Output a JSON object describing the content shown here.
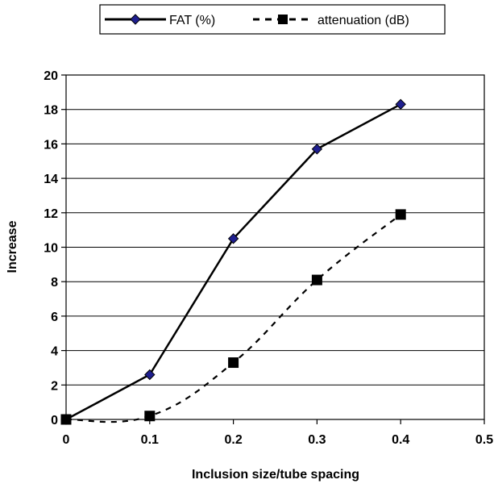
{
  "chart_data": {
    "type": "line",
    "xlabel": "Inclusion size/tube spacing",
    "ylabel": "Increase",
    "xlim": [
      0,
      0.5
    ],
    "ylim": [
      0,
      20
    ],
    "x_ticks": [
      "0",
      "0.1",
      "0.2",
      "0.3",
      "0.4",
      "0.5"
    ],
    "y_ticks": [
      "0",
      "2",
      "4",
      "6",
      "8",
      "10",
      "12",
      "14",
      "16",
      "18",
      "20"
    ],
    "grid": true,
    "legend_position": "top",
    "series": [
      {
        "name": "FAT (%)",
        "x": [
          0,
          0.1,
          0.2,
          0.3,
          0.4
        ],
        "values": [
          0,
          2.6,
          10.5,
          15.7,
          18.3
        ],
        "line_style": "solid",
        "marker": "diamond",
        "marker_color": "#1f1f8f",
        "line_color": "#000000"
      },
      {
        "name": "attenuation (dB)",
        "x": [
          0,
          0.1,
          0.2,
          0.3,
          0.4
        ],
        "values": [
          0,
          0.2,
          3.3,
          8.1,
          11.9
        ],
        "line_style": "dashed",
        "marker": "square",
        "marker_color": "#000000",
        "line_color": "#000000"
      }
    ]
  }
}
